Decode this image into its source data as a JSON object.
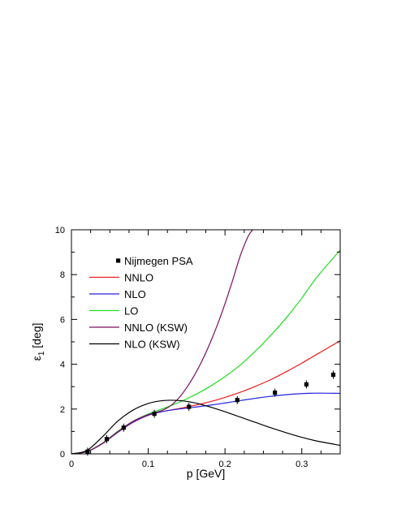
{
  "chart_data": {
    "type": "line",
    "xlabel": "p [GeV]",
    "ylabel_symbol": "ε",
    "ylabel_subscript": "1",
    "ylabel_unit": " [deg]",
    "xlim": [
      0,
      0.35
    ],
    "ylim": [
      0,
      10
    ],
    "x_ticks": [
      0,
      0.1,
      0.2,
      0.3
    ],
    "x_tick_labels": [
      "0",
      "0.1",
      "0.2",
      "0.3"
    ],
    "y_ticks": [
      0,
      2,
      4,
      6,
      8,
      10
    ],
    "y_tick_labels": [
      "0",
      "2",
      "4",
      "6",
      "8",
      "10"
    ],
    "grid": false,
    "legend_position": "top-left",
    "points": {
      "name": "Nijmegen PSA",
      "x": [
        0.021,
        0.046,
        0.068,
        0.108,
        0.153,
        0.216,
        0.265,
        0.306,
        0.341
      ],
      "y": [
        0.1,
        0.66,
        1.17,
        1.79,
        2.1,
        2.4,
        2.73,
        3.1,
        3.53
      ]
    },
    "series": [
      {
        "name": "NNLO",
        "color": "#ee1c1c",
        "x": [
          0,
          0.02,
          0.04,
          0.06,
          0.08,
          0.1,
          0.12,
          0.14,
          0.16,
          0.18,
          0.2,
          0.22,
          0.24,
          0.26,
          0.28,
          0.3,
          0.32,
          0.35
        ],
        "y": [
          0,
          0.1,
          0.45,
          0.95,
          1.4,
          1.72,
          1.9,
          2.02,
          2.16,
          2.32,
          2.52,
          2.75,
          3.02,
          3.32,
          3.67,
          4.05,
          4.45,
          5.05
        ]
      },
      {
        "name": "NLO",
        "color": "#2222dd",
        "x": [
          0,
          0.02,
          0.04,
          0.06,
          0.08,
          0.1,
          0.12,
          0.14,
          0.16,
          0.18,
          0.2,
          0.22,
          0.24,
          0.26,
          0.28,
          0.3,
          0.32,
          0.35
        ],
        "y": [
          0,
          0.1,
          0.45,
          0.96,
          1.42,
          1.73,
          1.9,
          2.0,
          2.08,
          2.17,
          2.27,
          2.38,
          2.48,
          2.57,
          2.64,
          2.69,
          2.71,
          2.7
        ]
      },
      {
        "name": "LO",
        "color": "#22dd22",
        "x": [
          0,
          0.02,
          0.04,
          0.06,
          0.08,
          0.1,
          0.12,
          0.14,
          0.16,
          0.18,
          0.2,
          0.22,
          0.24,
          0.26,
          0.28,
          0.3,
          0.32,
          0.35
        ],
        "y": [
          0,
          0.1,
          0.47,
          1.0,
          1.45,
          1.78,
          2.03,
          2.3,
          2.62,
          3.0,
          3.45,
          3.97,
          4.6,
          5.3,
          6.08,
          6.95,
          7.9,
          9.1
        ]
      },
      {
        "name": "NNLO (KSW)",
        "color": "#7a1060",
        "x": [
          0,
          0.02,
          0.04,
          0.06,
          0.08,
          0.1,
          0.11,
          0.12,
          0.13,
          0.14,
          0.15,
          0.16,
          0.17,
          0.18,
          0.19,
          0.2,
          0.21,
          0.22,
          0.23,
          0.236
        ],
        "y": [
          0,
          0.1,
          0.46,
          0.98,
          1.45,
          1.75,
          1.85,
          1.97,
          2.17,
          2.5,
          2.95,
          3.5,
          4.15,
          4.9,
          5.75,
          6.7,
          7.75,
          8.85,
          9.7,
          10.0
        ]
      },
      {
        "name": "NLO (KSW)",
        "color": "#000000",
        "x": [
          0,
          0.02,
          0.04,
          0.06,
          0.08,
          0.1,
          0.12,
          0.14,
          0.16,
          0.18,
          0.2,
          0.22,
          0.24,
          0.26,
          0.28,
          0.3,
          0.32,
          0.35
        ],
        "y": [
          0,
          0.15,
          0.75,
          1.45,
          1.95,
          2.25,
          2.38,
          2.38,
          2.28,
          2.1,
          1.88,
          1.64,
          1.4,
          1.16,
          0.94,
          0.74,
          0.57,
          0.38
        ]
      }
    ]
  }
}
